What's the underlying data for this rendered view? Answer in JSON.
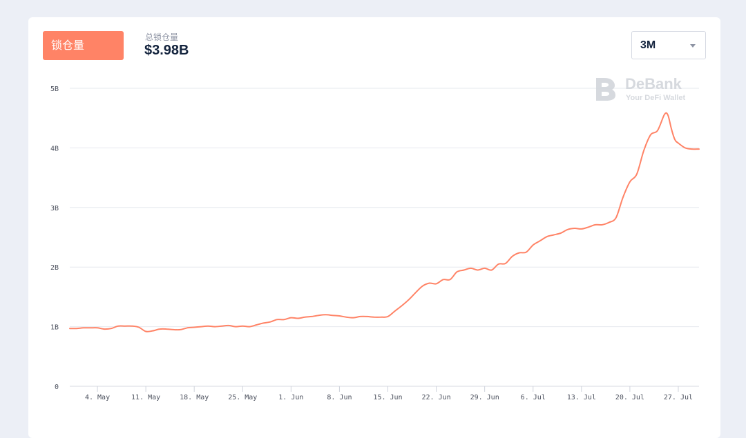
{
  "header": {
    "active_tab": "锁仓量",
    "metric_label": "总锁仓量",
    "metric_value": "$3.98B",
    "range_value": "3M"
  },
  "watermark": {
    "brand": "DeBank",
    "tagline": "Your DeFi Wallet"
  },
  "colors": {
    "line": "#ff8366",
    "accent": "#ff8366",
    "grid": "#e6e8ee",
    "background": "#eceff6"
  },
  "icons": [
    "debank-logo-icon",
    "chevron-down-icon"
  ],
  "chart_data": {
    "type": "line",
    "title": "",
    "xlabel": "",
    "ylabel": "",
    "ylim": [
      0,
      5
    ],
    "grid": true,
    "y_ticks": [
      {
        "value": 0,
        "label": "0"
      },
      {
        "value": 1,
        "label": "1B"
      },
      {
        "value": 2,
        "label": "2B"
      },
      {
        "value": 3,
        "label": "3B"
      },
      {
        "value": 4,
        "label": "4B"
      },
      {
        "value": 5,
        "label": "5B"
      }
    ],
    "x_ticks": [
      {
        "value": 4,
        "label": "4. May"
      },
      {
        "value": 11,
        "label": "11. May"
      },
      {
        "value": 18,
        "label": "18. May"
      },
      {
        "value": 25,
        "label": "25. May"
      },
      {
        "value": 32,
        "label": "1. Jun"
      },
      {
        "value": 39,
        "label": "8. Jun"
      },
      {
        "value": 46,
        "label": "15. Jun"
      },
      {
        "value": 53,
        "label": "22. Jun"
      },
      {
        "value": 60,
        "label": "29. Jun"
      },
      {
        "value": 67,
        "label": "6. Jul"
      },
      {
        "value": 74,
        "label": "13. Jul"
      },
      {
        "value": 81,
        "label": "20. Jul"
      },
      {
        "value": 88,
        "label": "27. Jul"
      }
    ],
    "xlim": [
      0,
      91
    ],
    "series": [
      {
        "color": "#ff8366",
        "x": [
          0,
          1,
          2,
          3,
          4,
          5,
          6,
          7,
          8,
          9,
          10,
          11,
          12,
          13,
          14,
          15,
          16,
          17,
          18,
          19,
          20,
          21,
          22,
          23,
          24,
          25,
          26,
          27,
          28,
          29,
          30,
          31,
          32,
          33,
          34,
          35,
          36,
          37,
          38,
          39,
          40,
          41,
          42,
          43,
          44,
          45,
          46,
          47,
          48,
          49,
          50,
          51,
          52,
          53,
          54,
          55,
          56,
          57,
          58,
          59,
          60,
          61,
          62,
          63,
          64,
          65,
          66,
          67,
          68,
          69,
          70,
          71,
          72,
          73,
          74,
          75,
          76,
          77,
          78,
          79,
          80,
          81,
          82,
          83,
          84,
          85,
          86,
          86.5,
          87,
          87.5,
          88,
          89,
          90,
          91
        ],
        "y": [
          0.97,
          0.97,
          0.98,
          0.98,
          0.98,
          0.96,
          0.97,
          1.01,
          1.01,
          1.01,
          0.99,
          0.92,
          0.93,
          0.96,
          0.96,
          0.95,
          0.95,
          0.98,
          0.99,
          1.0,
          1.01,
          1.0,
          1.01,
          1.02,
          1.0,
          1.01,
          1.0,
          1.03,
          1.06,
          1.08,
          1.12,
          1.12,
          1.15,
          1.14,
          1.16,
          1.17,
          1.19,
          1.2,
          1.19,
          1.18,
          1.16,
          1.15,
          1.17,
          1.17,
          1.16,
          1.16,
          1.17,
          1.26,
          1.35,
          1.45,
          1.57,
          1.68,
          1.73,
          1.72,
          1.79,
          1.79,
          1.92,
          1.95,
          1.98,
          1.95,
          1.98,
          1.95,
          2.05,
          2.06,
          2.18,
          2.24,
          2.25,
          2.37,
          2.44,
          2.51,
          2.54,
          2.57,
          2.63,
          2.65,
          2.64,
          2.67,
          2.71,
          2.71,
          2.75,
          2.83,
          3.17,
          3.43,
          3.56,
          3.95,
          4.22,
          4.29,
          4.56,
          4.55,
          4.32,
          4.14,
          4.08,
          4.0,
          3.98,
          3.98
        ]
      }
    ]
  }
}
